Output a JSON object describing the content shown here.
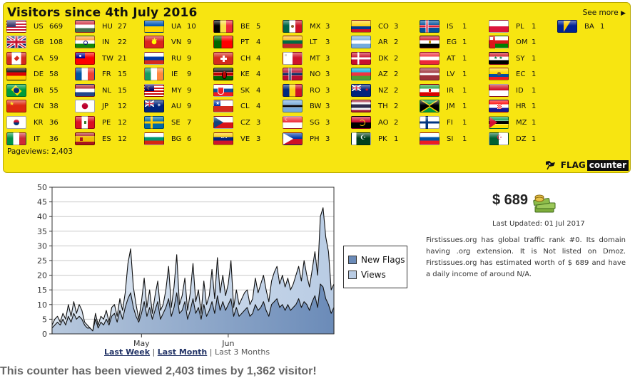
{
  "panel": {
    "title": "Visitors since 4th July 2016",
    "see_more": "See more",
    "pageviews": "Pageviews: 2,403",
    "brand_flag": "FLAG",
    "brand_counter": "counter",
    "flags": [
      {
        "code": "US",
        "count": "669",
        "type": "us"
      },
      {
        "code": "GB",
        "count": "108",
        "type": "gb"
      },
      {
        "code": "CA",
        "count": "59",
        "type": "ca"
      },
      {
        "code": "DE",
        "count": "58",
        "type": "de"
      },
      {
        "code": "BR",
        "count": "55",
        "type": "br"
      },
      {
        "code": "CN",
        "count": "38",
        "type": "cn"
      },
      {
        "code": "KR",
        "count": "36",
        "type": "kr"
      },
      {
        "code": "IT",
        "count": "36",
        "type": "it"
      },
      {
        "code": "HU",
        "count": "27",
        "type": "hu"
      },
      {
        "code": "IN",
        "count": "22",
        "type": "in"
      },
      {
        "code": "TW",
        "count": "21",
        "type": "tw"
      },
      {
        "code": "FR",
        "count": "15",
        "type": "fr"
      },
      {
        "code": "NL",
        "count": "15",
        "type": "nl"
      },
      {
        "code": "JP",
        "count": "12",
        "type": "jp"
      },
      {
        "code": "PE",
        "count": "12",
        "type": "pe"
      },
      {
        "code": "ES",
        "count": "12",
        "type": "es"
      },
      {
        "code": "UA",
        "count": "10",
        "type": "ua"
      },
      {
        "code": "VN",
        "count": "9",
        "type": "vn"
      },
      {
        "code": "RU",
        "count": "9",
        "type": "ru"
      },
      {
        "code": "IE",
        "count": "9",
        "type": "ie"
      },
      {
        "code": "MY",
        "count": "9",
        "type": "my"
      },
      {
        "code": "AU",
        "count": "9",
        "type": "au"
      },
      {
        "code": "SE",
        "count": "7",
        "type": "se"
      },
      {
        "code": "BG",
        "count": "6",
        "type": "bg"
      },
      {
        "code": "BE",
        "count": "5",
        "type": "be"
      },
      {
        "code": "PT",
        "count": "4",
        "type": "pt"
      },
      {
        "code": "CH",
        "count": "4",
        "type": "ch"
      },
      {
        "code": "KE",
        "count": "4",
        "type": "ke"
      },
      {
        "code": "SK",
        "count": "4",
        "type": "sk"
      },
      {
        "code": "CL",
        "count": "4",
        "type": "cl"
      },
      {
        "code": "CZ",
        "count": "3",
        "type": "cz"
      },
      {
        "code": "VE",
        "count": "3",
        "type": "ve"
      },
      {
        "code": "MX",
        "count": "3",
        "type": "mx"
      },
      {
        "code": "LT",
        "count": "3",
        "type": "lt"
      },
      {
        "code": "MT",
        "count": "3",
        "type": "mt"
      },
      {
        "code": "NO",
        "count": "3",
        "type": "no"
      },
      {
        "code": "RO",
        "count": "3",
        "type": "ro"
      },
      {
        "code": "BW",
        "count": "3",
        "type": "bw"
      },
      {
        "code": "SG",
        "count": "3",
        "type": "sg"
      },
      {
        "code": "PH",
        "count": "3",
        "type": "ph"
      },
      {
        "code": "CO",
        "count": "3",
        "type": "co"
      },
      {
        "code": "AR",
        "count": "2",
        "type": "ar"
      },
      {
        "code": "DK",
        "count": "2",
        "type": "dk"
      },
      {
        "code": "AZ",
        "count": "2",
        "type": "az"
      },
      {
        "code": "NZ",
        "count": "2",
        "type": "nz"
      },
      {
        "code": "TH",
        "count": "2",
        "type": "th"
      },
      {
        "code": "AO",
        "count": "2",
        "type": "ao"
      },
      {
        "code": "PK",
        "count": "1",
        "type": "pk"
      },
      {
        "code": "IS",
        "count": "1",
        "type": "is"
      },
      {
        "code": "EG",
        "count": "1",
        "type": "eg"
      },
      {
        "code": "AT",
        "count": "1",
        "type": "at"
      },
      {
        "code": "LV",
        "count": "1",
        "type": "lv"
      },
      {
        "code": "IR",
        "count": "1",
        "type": "ir"
      },
      {
        "code": "JM",
        "count": "1",
        "type": "jm"
      },
      {
        "code": "FI",
        "count": "1",
        "type": "fi"
      },
      {
        "code": "SI",
        "count": "1",
        "type": "si"
      },
      {
        "code": "PL",
        "count": "1",
        "type": "pl"
      },
      {
        "code": "OM",
        "count": "1",
        "type": "om"
      },
      {
        "code": "SY",
        "count": "1",
        "type": "sy"
      },
      {
        "code": "EC",
        "count": "1",
        "type": "ec"
      },
      {
        "code": "ID",
        "count": "1",
        "type": "id"
      },
      {
        "code": "HR",
        "count": "1",
        "type": "hr"
      },
      {
        "code": "MZ",
        "count": "1",
        "type": "mz"
      },
      {
        "code": "DZ",
        "count": "1",
        "type": "dz"
      },
      {
        "code": "BA",
        "count": "1",
        "type": "ba"
      }
    ]
  },
  "chart_data": {
    "type": "area",
    "title": "",
    "xlabel": "",
    "ylabel": "",
    "ylim": [
      0,
      50
    ],
    "yticks": [
      0,
      5,
      10,
      15,
      20,
      25,
      30,
      35,
      40,
      45,
      50
    ],
    "x_tick_labels": [
      {
        "label": "May",
        "index": 33
      },
      {
        "label": "Jun",
        "index": 65
      }
    ],
    "grid": true,
    "legend_position": "right",
    "series": [
      {
        "name": "Views",
        "color": "#b9cce4",
        "values": [
          3,
          5,
          6,
          4,
          7,
          5,
          10,
          6,
          11,
          7,
          10,
          8,
          4,
          3,
          2,
          1,
          7,
          3,
          6,
          5,
          8,
          4,
          9,
          10,
          6,
          12,
          8,
          14,
          24,
          29,
          16,
          10,
          5,
          11,
          19,
          9,
          15,
          7,
          13,
          18,
          8,
          10,
          15,
          23,
          9,
          16,
          27,
          10,
          13,
          19,
          8,
          14,
          24,
          11,
          15,
          7,
          18,
          10,
          13,
          22,
          12,
          26,
          14,
          20,
          13,
          17,
          25,
          9,
          15,
          10,
          12,
          14,
          15,
          10,
          12,
          19,
          14,
          17,
          20,
          15,
          11,
          18,
          21,
          23,
          17,
          20,
          16,
          19,
          15,
          17,
          20,
          23,
          18,
          25,
          20,
          16,
          22,
          28,
          20,
          40,
          43,
          33,
          28,
          15,
          17
        ]
      },
      {
        "name": "New Flags",
        "color": "#6b8bb8",
        "values": [
          2,
          3,
          4,
          3,
          5,
          3,
          6,
          4,
          7,
          5,
          6,
          5,
          3,
          2,
          2,
          1,
          5,
          2,
          4,
          3,
          5,
          3,
          6,
          7,
          4,
          8,
          5,
          9,
          12,
          14,
          9,
          6,
          4,
          7,
          11,
          6,
          9,
          5,
          8,
          11,
          5,
          7,
          9,
          12,
          6,
          9,
          14,
          7,
          8,
          11,
          5,
          8,
          12,
          7,
          9,
          5,
          10,
          6,
          8,
          11,
          7,
          13,
          8,
          11,
          8,
          10,
          12,
          6,
          9,
          6,
          7,
          8,
          9,
          6,
          7,
          10,
          8,
          9,
          11,
          8,
          6,
          10,
          11,
          12,
          9,
          10,
          8,
          10,
          8,
          9,
          10,
          12,
          9,
          11,
          10,
          8,
          11,
          13,
          9,
          17,
          16,
          12,
          10,
          7,
          9
        ]
      }
    ]
  },
  "range_links": {
    "last_week": "Last Week",
    "last_month": "Last Month",
    "sep": "|",
    "last_3_months": "Last 3 Months"
  },
  "counter_text": "This counter has been viewed 2,403 times by 1,362 visitor!",
  "worth": {
    "value": "$ 689",
    "updated": "Last Updated: 01 Jul 2017",
    "description": "Firstissues.org has global traffic rank #0. Its domain having .org extension. It is Not listed on Dmoz. Firstissues.org has estimated worth of $ 689 and have a daily income of around N/A."
  }
}
